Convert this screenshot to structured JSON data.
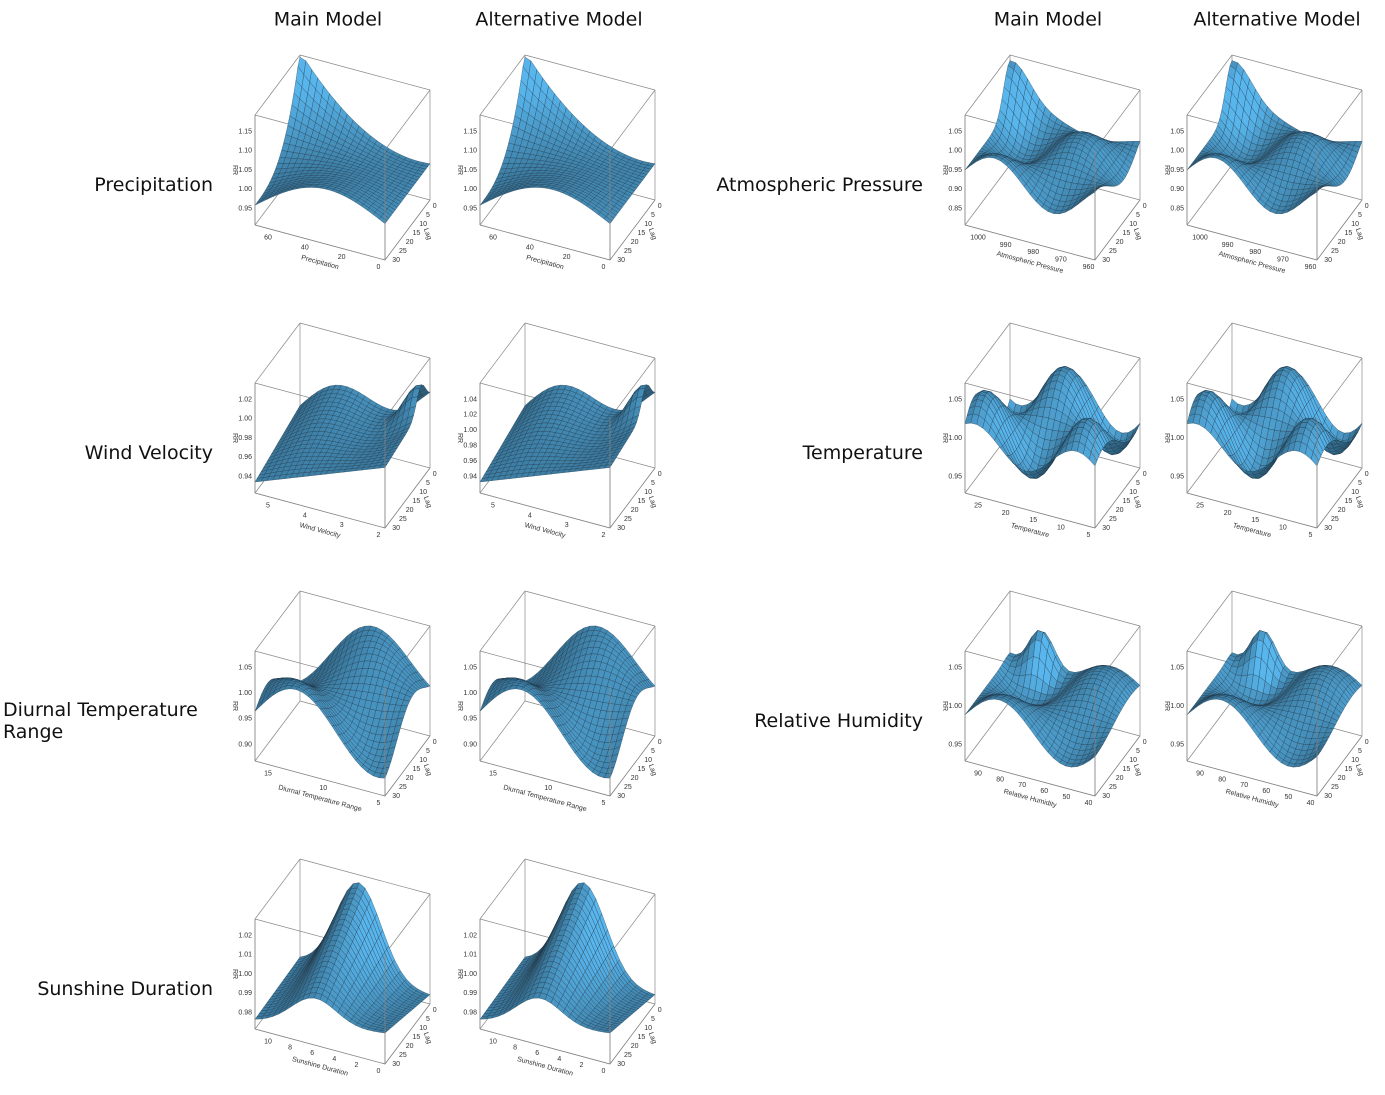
{
  "column_headers": {
    "left": [
      "Main Model",
      "Alternative Model"
    ],
    "right": [
      "Main Model",
      "Alternative Model"
    ]
  },
  "z_axis_label": "RR",
  "lag_axis_label": "Lag",
  "lag_ticks": [
    0,
    5,
    10,
    15,
    20,
    25,
    30
  ],
  "left_rows": [
    {
      "label": "Precipitation",
      "x_axis_label": "Precipitation",
      "x_ticks": [
        60,
        40,
        20,
        0
      ],
      "z_ticks": [
        [
          "1.15",
          "1.10",
          "1.05",
          "1.00",
          "0.95"
        ],
        [
          "1.15",
          "1.10",
          "1.05",
          "1.00",
          "0.95"
        ]
      ]
    },
    {
      "label": "Wind Velocity",
      "x_axis_label": "Wind Velocity",
      "x_ticks": [
        5,
        4,
        3,
        2
      ],
      "z_ticks": [
        [
          "1.02",
          "1.00",
          "0.98",
          "0.96",
          "0.94"
        ],
        [
          "1.04",
          "1.02",
          "1.00",
          "0.98",
          "0.96",
          "0.94"
        ]
      ]
    },
    {
      "label": "Diurnal Temperature Range",
      "x_axis_label": "Diurnal Temperature Range",
      "x_ticks": [
        15,
        10,
        5
      ],
      "z_ticks": [
        [
          "1.05",
          "1.00",
          "0.95",
          "0.90"
        ],
        [
          "1.05",
          "1.00",
          "0.95",
          "0.90"
        ]
      ]
    },
    {
      "label": "Sunshine Duration",
      "x_axis_label": "Sunshine Duration",
      "x_ticks": [
        10,
        8,
        6,
        4,
        2,
        0
      ],
      "z_ticks": [
        [
          "1.02",
          "1.01",
          "1.00",
          "0.99",
          "0.98"
        ],
        [
          "1.02",
          "1.01",
          "1.00",
          "0.99",
          "0.98"
        ]
      ]
    }
  ],
  "right_rows": [
    {
      "label": "Atmospheric Pressure",
      "x_axis_label": "Atmospheric Pressure",
      "x_ticks": [
        1000,
        990,
        980,
        970,
        960
      ],
      "z_ticks": [
        [
          "1.05",
          "1.00",
          "0.95",
          "0.90",
          "0.85"
        ],
        [
          "1.05",
          "1.00",
          "0.95",
          "0.90",
          "0.85"
        ]
      ]
    },
    {
      "label": "Temperature",
      "x_axis_label": "Temperature",
      "x_ticks": [
        25,
        20,
        15,
        10,
        5
      ],
      "z_ticks": [
        [
          "1.05",
          "1.00",
          "0.95"
        ],
        [
          "1.05",
          "1.00",
          "0.95"
        ]
      ]
    },
    {
      "label": "Relative Humidity",
      "x_axis_label": "Relative Humidity",
      "x_ticks": [
        90,
        80,
        70,
        60,
        50,
        40
      ],
      "z_ticks": [
        [
          "1.05",
          "1.00",
          "0.95"
        ],
        [
          "1.05",
          "1.00",
          "0.95"
        ]
      ]
    }
  ]
}
